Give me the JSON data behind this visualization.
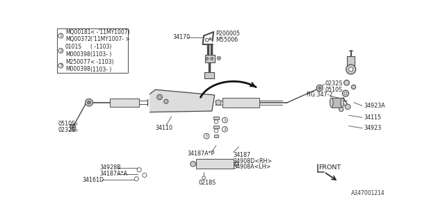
{
  "bg_color": "#ffffff",
  "line_color": "#4a4a4a",
  "text_color": "#222222",
  "diagram_id": "A347001214",
  "legend_items": [
    [
      "1",
      "MQ00181",
      "< -'11MY1007)"
    ],
    [
      "1",
      "MQ00372",
      "('11MY1007- >"
    ],
    [
      "2",
      "0101S",
      "( -1103)"
    ],
    [
      "2",
      "M000398",
      "(1103- )"
    ],
    [
      "3",
      "M250077",
      "< -1103)"
    ],
    [
      "3",
      "M000398",
      "(1103- )"
    ]
  ],
  "fs": 5.8,
  "fl": 5.5
}
